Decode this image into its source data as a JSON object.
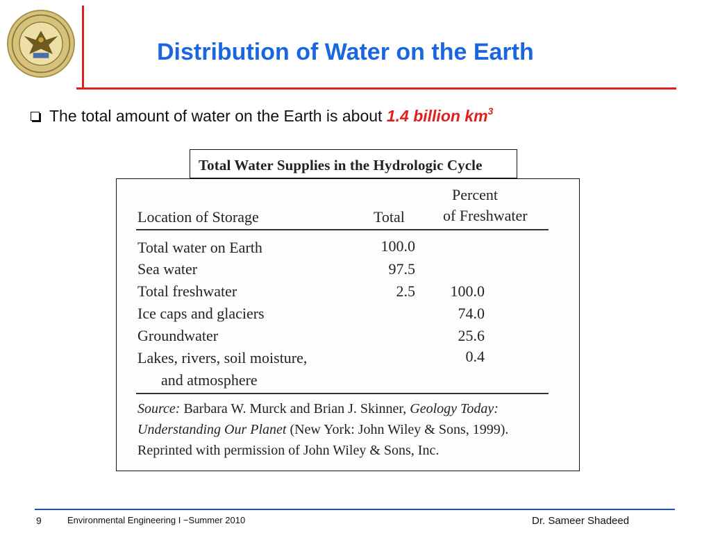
{
  "header": {
    "title": "Distribution of Water on the Earth",
    "logo_icon": "university-seal-icon"
  },
  "bullet": {
    "text": "The total amount of water on the Earth is about",
    "highlight": "1.4 billion km",
    "superscript": "3"
  },
  "table": {
    "title": "Total Water Supplies in the Hydrologic Cycle",
    "columns": {
      "location": "Location of Storage",
      "total": "Total",
      "percent_line1": "Percent",
      "percent_line2": "of Freshwater"
    },
    "rows": [
      {
        "location": "Total water on Earth",
        "total": "100.0",
        "percent": ""
      },
      {
        "location": "Sea water",
        "total": "97.5",
        "percent": ""
      },
      {
        "location": "Total freshwater",
        "total": "2.5",
        "percent": "100.0"
      },
      {
        "location": "Ice caps and glaciers",
        "total": "",
        "percent": "74.0"
      },
      {
        "location": "Groundwater",
        "total": "",
        "percent": "25.6"
      },
      {
        "location": "Lakes, rivers, soil moisture,",
        "total": "",
        "percent": "0.4"
      },
      {
        "location": "and atmosphere",
        "total": "",
        "percent": ""
      }
    ],
    "source": {
      "label": "Source:",
      "authors": "Barbara W. Murck and Brian J. Skinner,",
      "book": "Geology Today: Understanding Our Planet",
      "rest": "(New York: John Wiley & Sons, 1999). Reprinted with permission of John Wiley & Sons, Inc."
    }
  },
  "footer": {
    "page": "9",
    "course": "Environmental Engineering I −Summer 2010",
    "author": "Dr. Sameer Shadeed"
  },
  "colors": {
    "title": "#1a66e0",
    "accent_red": "#e0201d",
    "footer_line": "#1a4fd0"
  }
}
